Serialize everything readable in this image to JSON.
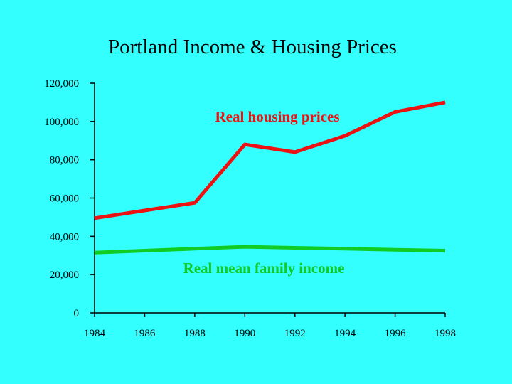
{
  "chart_data": {
    "type": "line",
    "title": "Portland Income & Housing Prices",
    "xlabel": "",
    "ylabel": "",
    "x": [
      1984,
      1986,
      1988,
      1990,
      1992,
      1994,
      1996,
      1998
    ],
    "x_ticks": [
      "1984",
      "1986",
      "1988",
      "1990",
      "1992",
      "1994",
      "1996",
      "1998"
    ],
    "xlim": [
      1984,
      1998
    ],
    "ylim": [
      0,
      120000
    ],
    "y_ticks": [
      "0",
      "20,000",
      "40,000",
      "60,000",
      "80,000",
      "100,000",
      "120,000"
    ],
    "y_tick_values": [
      0,
      20000,
      40000,
      60000,
      80000,
      100000,
      120000
    ],
    "grid": false,
    "legend": "none",
    "series": [
      {
        "name": "Real housing prices",
        "color": "#ee1111",
        "values": [
          49500,
          53500,
          57500,
          88000,
          84000,
          92500,
          105000,
          110000
        ]
      },
      {
        "name": "Real mean family income",
        "color": "#11cc22",
        "values": [
          31500,
          32500,
          33500,
          34500,
          34000,
          33500,
          33000,
          32500
        ]
      }
    ]
  },
  "colors": {
    "background": "#33ffff",
    "axis": "#000000"
  }
}
